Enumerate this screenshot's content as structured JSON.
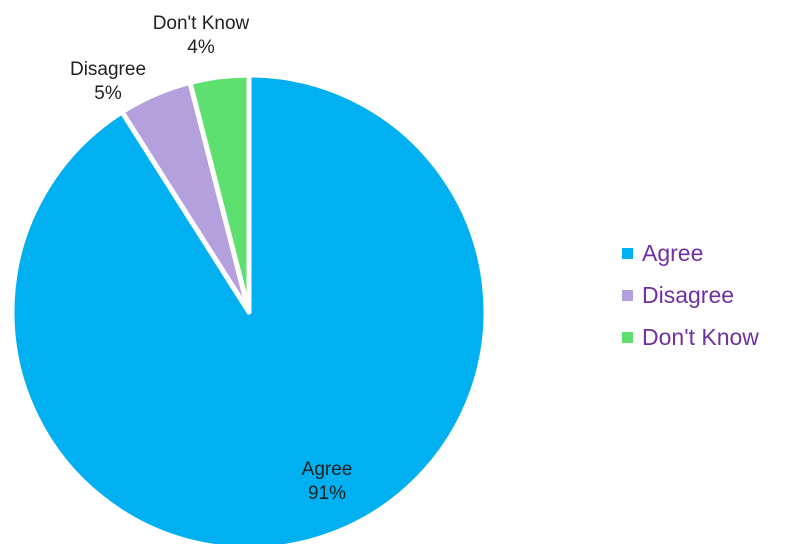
{
  "chart_data": {
    "type": "pie",
    "title": "",
    "slices": [
      {
        "label": "Agree",
        "value": 91,
        "value_label": "91%",
        "color": "#00b0f0"
      },
      {
        "label": "Disagree",
        "value": 5,
        "value_label": "5%",
        "color": "#b4a0dc"
      },
      {
        "label": "Don't Know",
        "value": 4,
        "value_label": "4%",
        "color": "#5ee070"
      }
    ],
    "start_direction": "12 o'clock",
    "rotation": "clockwise",
    "slice_border_color": "#ffffff",
    "legend": {
      "placement": "right",
      "text_color": "#7030a0"
    }
  }
}
